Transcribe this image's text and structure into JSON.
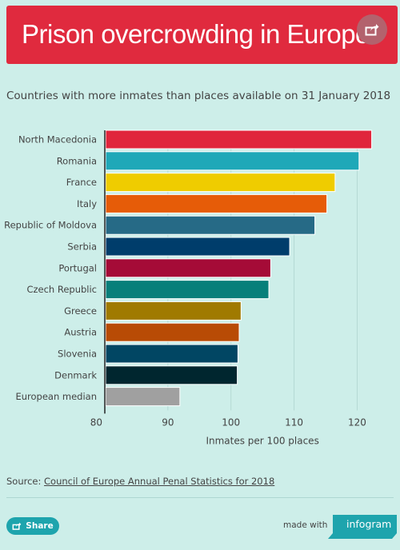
{
  "header": {
    "title": "Prison overcrowding in Europe"
  },
  "subtitle": "Countries with more inmates than places available on 31 January 2018",
  "chart_data": {
    "type": "bar",
    "orientation": "horizontal",
    "categories": [
      "North Macedonia",
      "Romania",
      "France",
      "Italy",
      "Republic of Moldova",
      "Serbia",
      "Portugal",
      "Czech Republic",
      "Greece",
      "Austria",
      "Slovenia",
      "Denmark",
      "European median"
    ],
    "values": [
      122.3,
      120.3,
      116.5,
      115.2,
      113.3,
      109.3,
      106.3,
      106.0,
      101.6,
      101.3,
      101.1,
      101.0,
      91.9
    ],
    "colors": [
      "#e0253c",
      "#1fa8b8",
      "#efcc00",
      "#e65c08",
      "#266a86",
      "#003d6b",
      "#a50b37",
      "#087f7a",
      "#a07a00",
      "#b84b05",
      "#014663",
      "#00262f",
      "#a0a0a0"
    ],
    "xlabel": "Inmates per 100 places",
    "xlim": [
      80,
      124
    ],
    "xticks": [
      80,
      90,
      100,
      110,
      120
    ],
    "grid": true
  },
  "source": {
    "prefix": "Source: ",
    "link": "Council of Europe Annual Penal Statistics for 2018"
  },
  "footer": {
    "share_label": "Share",
    "made_with": "made with",
    "brand": "infogram"
  }
}
